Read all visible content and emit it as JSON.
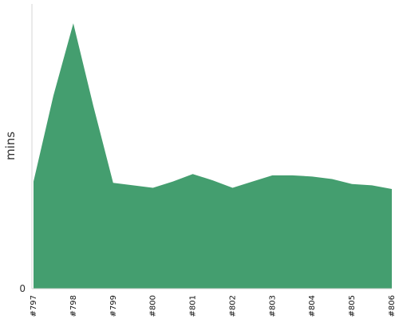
{
  "chart_data": {
    "type": "area",
    "title": "",
    "xlabel": "",
    "ylabel": "mins",
    "categories": [
      "#797",
      "#798",
      "#799",
      "#800",
      "#801",
      "#802",
      "#803",
      "#804",
      "#805",
      "#806"
    ],
    "x": [
      797,
      797.5,
      798,
      798.5,
      799,
      799.5,
      800,
      800.5,
      801,
      801.5,
      802,
      802.5,
      803,
      803.5,
      804,
      804.5,
      805,
      805.5,
      806
    ],
    "series": [
      {
        "values": [
          8.6,
          15.5,
          21.3,
          14.7,
          8.5,
          8.3,
          8.1,
          8.6,
          9.2,
          8.7,
          8.1,
          8.6,
          9.1,
          9.1,
          9.0,
          8.8,
          8.4,
          8.3,
          8.0
        ]
      }
    ],
    "ylim": [
      0,
      22.4
    ],
    "yticks": [
      0
    ],
    "ytick_labels": [
      "0"
    ],
    "grid": false,
    "legend": "none",
    "color": "#449e6f"
  }
}
